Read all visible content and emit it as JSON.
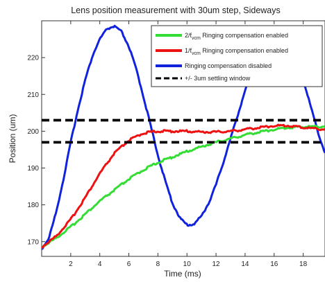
{
  "chart_data": {
    "type": "line",
    "title": "Lens position measurement with 30um step, Sideways",
    "xlabel": "Time (ms)",
    "ylabel": "Position (um)",
    "xlim": [
      0,
      19.5
    ],
    "ylim": [
      166,
      230
    ],
    "xticks": [
      2,
      4,
      6,
      8,
      10,
      12,
      14,
      16,
      18
    ],
    "yticks": [
      170,
      180,
      190,
      200,
      210,
      220
    ],
    "grid": false,
    "legend_position": "top-right",
    "series": [
      {
        "name_main": "2/f",
        "name_sub": "vcm",
        "name_rest": " Ringing compensation enabled",
        "color": "#33dd33",
        "style": "solid",
        "x": [
          0,
          1,
          2,
          3,
          4,
          5,
          6,
          7,
          8,
          9,
          10,
          11,
          12,
          13,
          14,
          15,
          16,
          17,
          18,
          19.5
        ],
        "y": [
          168.5,
          171,
          174,
          177.5,
          181,
          184,
          187,
          189.5,
          191.5,
          193,
          194.5,
          195.8,
          197,
          198,
          199,
          199.8,
          200.5,
          201,
          201.2,
          201.3
        ]
      },
      {
        "name_main": "1/f",
        "name_sub": "vcm",
        "name_rest": " Ringing compensation enabled",
        "color": "#ee1111",
        "style": "solid",
        "x": [
          0,
          1,
          2,
          3,
          4,
          5,
          6,
          7,
          8,
          9,
          10,
          11,
          12,
          13,
          14,
          15,
          16,
          17,
          18,
          19.5
        ],
        "y": [
          168.5,
          171.5,
          176,
          182,
          188.5,
          194,
          197.5,
          199.5,
          200,
          200,
          200,
          199.8,
          199.8,
          200,
          200.5,
          201,
          201.5,
          201.5,
          201,
          200.5
        ]
      },
      {
        "name_main": "Ringing compensation disabled",
        "name_sub": "",
        "name_rest": "",
        "color": "#1122dd",
        "style": "solid",
        "x": [
          0,
          0.5,
          1,
          1.5,
          2,
          2.5,
          3,
          3.5,
          4,
          4.5,
          5,
          5.5,
          6,
          6.5,
          7,
          7.5,
          8,
          8.5,
          9,
          9.5,
          10,
          10.5,
          11,
          11.5,
          12,
          12.5,
          13,
          13.5,
          14,
          14.5,
          15,
          15.5,
          16,
          16.5,
          17,
          17.5,
          18,
          18.5,
          19,
          19.5
        ],
        "y": [
          168,
          171,
          178,
          187,
          197,
          206,
          214,
          220.5,
          225,
          227.8,
          228.5,
          227,
          223,
          217,
          209.5,
          201.5,
          193.5,
          186.5,
          180.5,
          176.5,
          174.5,
          174.8,
          177,
          180.5,
          185.5,
          191.5,
          198,
          204.5,
          211,
          216.5,
          221,
          224,
          226,
          226,
          224,
          220,
          214,
          207,
          200,
          194
        ]
      },
      {
        "name_main": "+/- 3um settling window",
        "name_sub": "",
        "name_rest": "",
        "color": "#000000",
        "style": "dashed",
        "x": [
          0,
          19.5
        ],
        "y_lines": [
          203,
          197
        ]
      }
    ]
  }
}
